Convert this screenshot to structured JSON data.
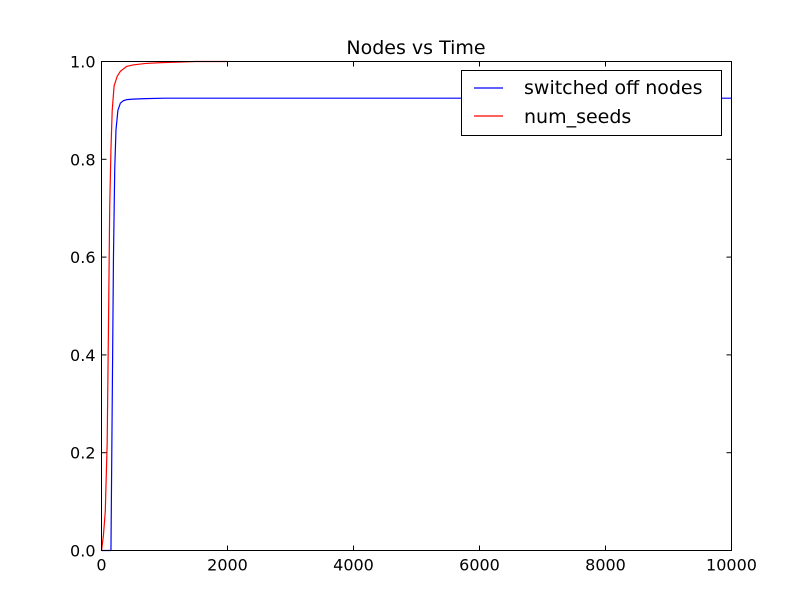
{
  "chart_data": {
    "type": "line",
    "title": "Nodes vs Time",
    "xlabel": "",
    "ylabel": "",
    "xlim": [
      0,
      10000
    ],
    "ylim": [
      0,
      1
    ],
    "x_ticks": [
      0,
      2000,
      4000,
      6000,
      8000,
      10000
    ],
    "y_ticks": [
      0.0,
      0.2,
      0.4,
      0.6,
      0.8,
      1.0
    ],
    "x_tick_labels": [
      "0",
      "2000",
      "4000",
      "6000",
      "8000",
      "10000"
    ],
    "y_tick_labels": [
      "0.0",
      "0.2",
      "0.4",
      "0.6",
      "0.8",
      "1.0"
    ],
    "grid": false,
    "legend_position": "top-right",
    "series": [
      {
        "name": "switched off nodes",
        "color": "#0000ff",
        "x": [
          0,
          150,
          170,
          190,
          210,
          230,
          260,
          300,
          350,
          400,
          500,
          700,
          1000,
          2000,
          4000,
          6000,
          8000,
          10000
        ],
        "y": [
          0.0,
          0.0,
          0.3,
          0.6,
          0.78,
          0.86,
          0.9,
          0.915,
          0.92,
          0.922,
          0.923,
          0.924,
          0.925,
          0.925,
          0.925,
          0.925,
          0.925,
          0.925
        ]
      },
      {
        "name": "num_seeds",
        "color": "#ff0000",
        "x": [
          0,
          30,
          60,
          90,
          110,
          130,
          150,
          170,
          200,
          250,
          300,
          350,
          400,
          500,
          700,
          1000,
          1500,
          2000
        ],
        "y": [
          0.0,
          0.03,
          0.08,
          0.22,
          0.45,
          0.7,
          0.82,
          0.9,
          0.95,
          0.97,
          0.98,
          0.985,
          0.99,
          0.993,
          0.996,
          0.998,
          1.0,
          1.0
        ]
      }
    ]
  }
}
